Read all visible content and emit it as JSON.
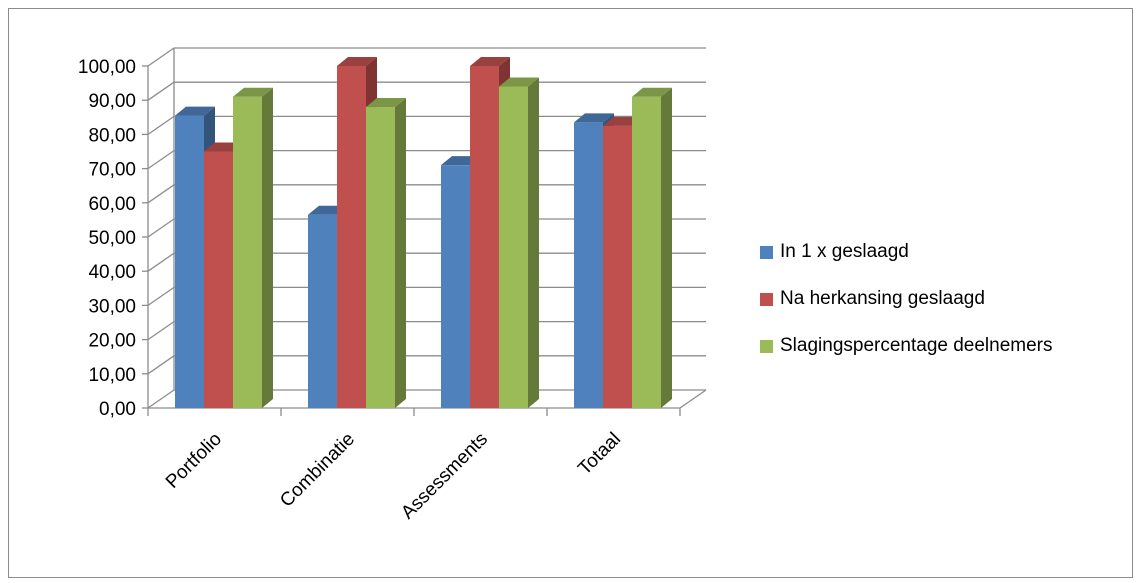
{
  "chart_data": {
    "type": "bar",
    "categories": [
      "Portfolio",
      "Combinatie",
      "Assessments",
      "Totaal"
    ],
    "series": [
      {
        "name": "In 1 x geslaagd",
        "values": [
          85.5,
          56.5,
          71,
          83.5
        ],
        "color": "#4f81bd"
      },
      {
        "name": "Na herkansing geslaagd",
        "values": [
          75,
          100,
          100,
          82.5
        ],
        "color": "#c0504d"
      },
      {
        "name": "Slagingspercentage deelnemers",
        "values": [
          91,
          88,
          94,
          91
        ],
        "color": "#9bbb59"
      }
    ],
    "ylim": [
      0,
      100
    ],
    "y_ticks": [
      "0,00",
      "10,00",
      "20,00",
      "30,00",
      "40,00",
      "50,00",
      "60,00",
      "70,00",
      "80,00",
      "90,00",
      "100,00"
    ],
    "grid": true,
    "legend_position": "right",
    "style": "3d-clustered-column"
  }
}
